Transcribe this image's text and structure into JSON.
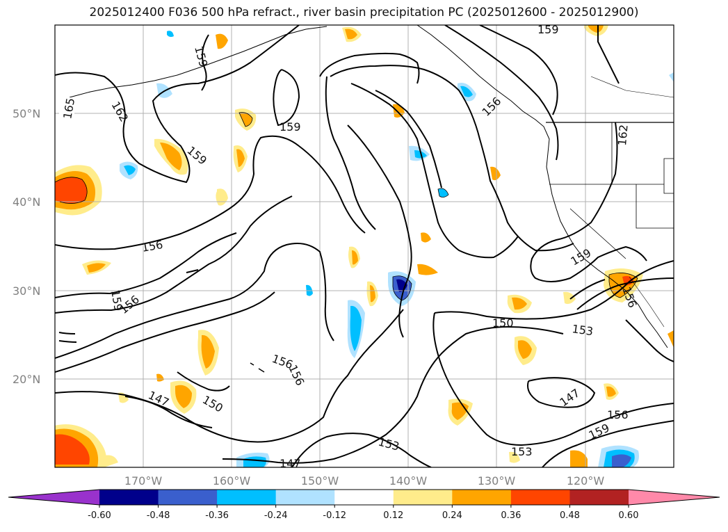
{
  "title": "2025012400 F036 500 hPa refract., river basin precipitation PC (2025012600 - 2025012900)",
  "lat_labels": [
    "50°N",
    "40°N",
    "30°N",
    "20°N"
  ],
  "lon_labels": [
    "170°W",
    "160°W",
    "150°W",
    "140°W",
    "130°W",
    "120°W"
  ],
  "contour_labels": [
    "165",
    "162",
    "159",
    "159",
    "156",
    "159",
    "156",
    "159",
    "156",
    "162",
    "156",
    "159",
    "156",
    "150",
    "153",
    "159",
    "156",
    "156",
    "147",
    "150",
    "147",
    "153",
    "147",
    "153",
    "156",
    "159",
    "159"
  ],
  "colorbar": {
    "tick_labels": [
      "-0.60",
      "-0.48",
      "-0.36",
      "-0.24",
      "-0.12",
      "0.12",
      "0.24",
      "0.36",
      "0.48",
      "0.60"
    ],
    "colors": [
      "#9932cc",
      "#00008b",
      "#3a5fcd",
      "#00bfff",
      "#b0e2ff",
      "#ffffff",
      "#ffec8b",
      "#ffa500",
      "#ff4500",
      "#b22222",
      "#ff89a9"
    ]
  },
  "colors": {
    "contour": "#000000",
    "grid": "#b0b0b0",
    "coast": "#000000"
  }
}
